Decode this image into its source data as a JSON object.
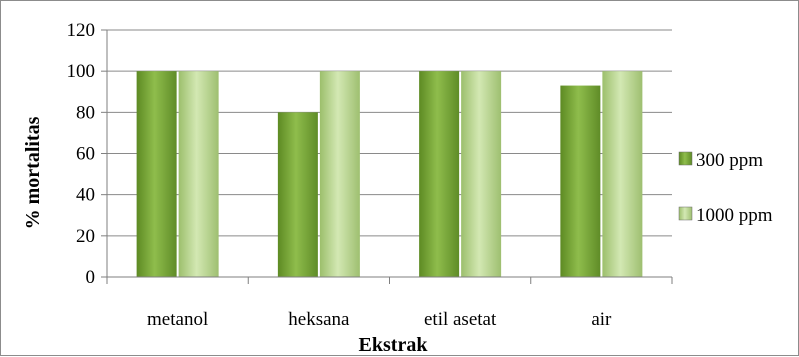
{
  "chart_data": {
    "type": "bar",
    "categories": [
      "metanol",
      "heksana",
      "etil asetat",
      "air"
    ],
    "series": [
      {
        "name": "300 ppm",
        "values": [
          100,
          80,
          100,
          93
        ],
        "color": "#7aa33a"
      },
      {
        "name": "1000 ppm",
        "values": [
          100,
          100,
          100,
          100
        ],
        "color": "#b5d28a"
      }
    ],
    "title": "",
    "xlabel": "Ekstrak",
    "ylabel": "% mortalitas",
    "ylim": [
      0,
      120
    ],
    "yticks": [
      0,
      20,
      40,
      60,
      80,
      100,
      120
    ],
    "grid": true,
    "legend_position": "right"
  }
}
